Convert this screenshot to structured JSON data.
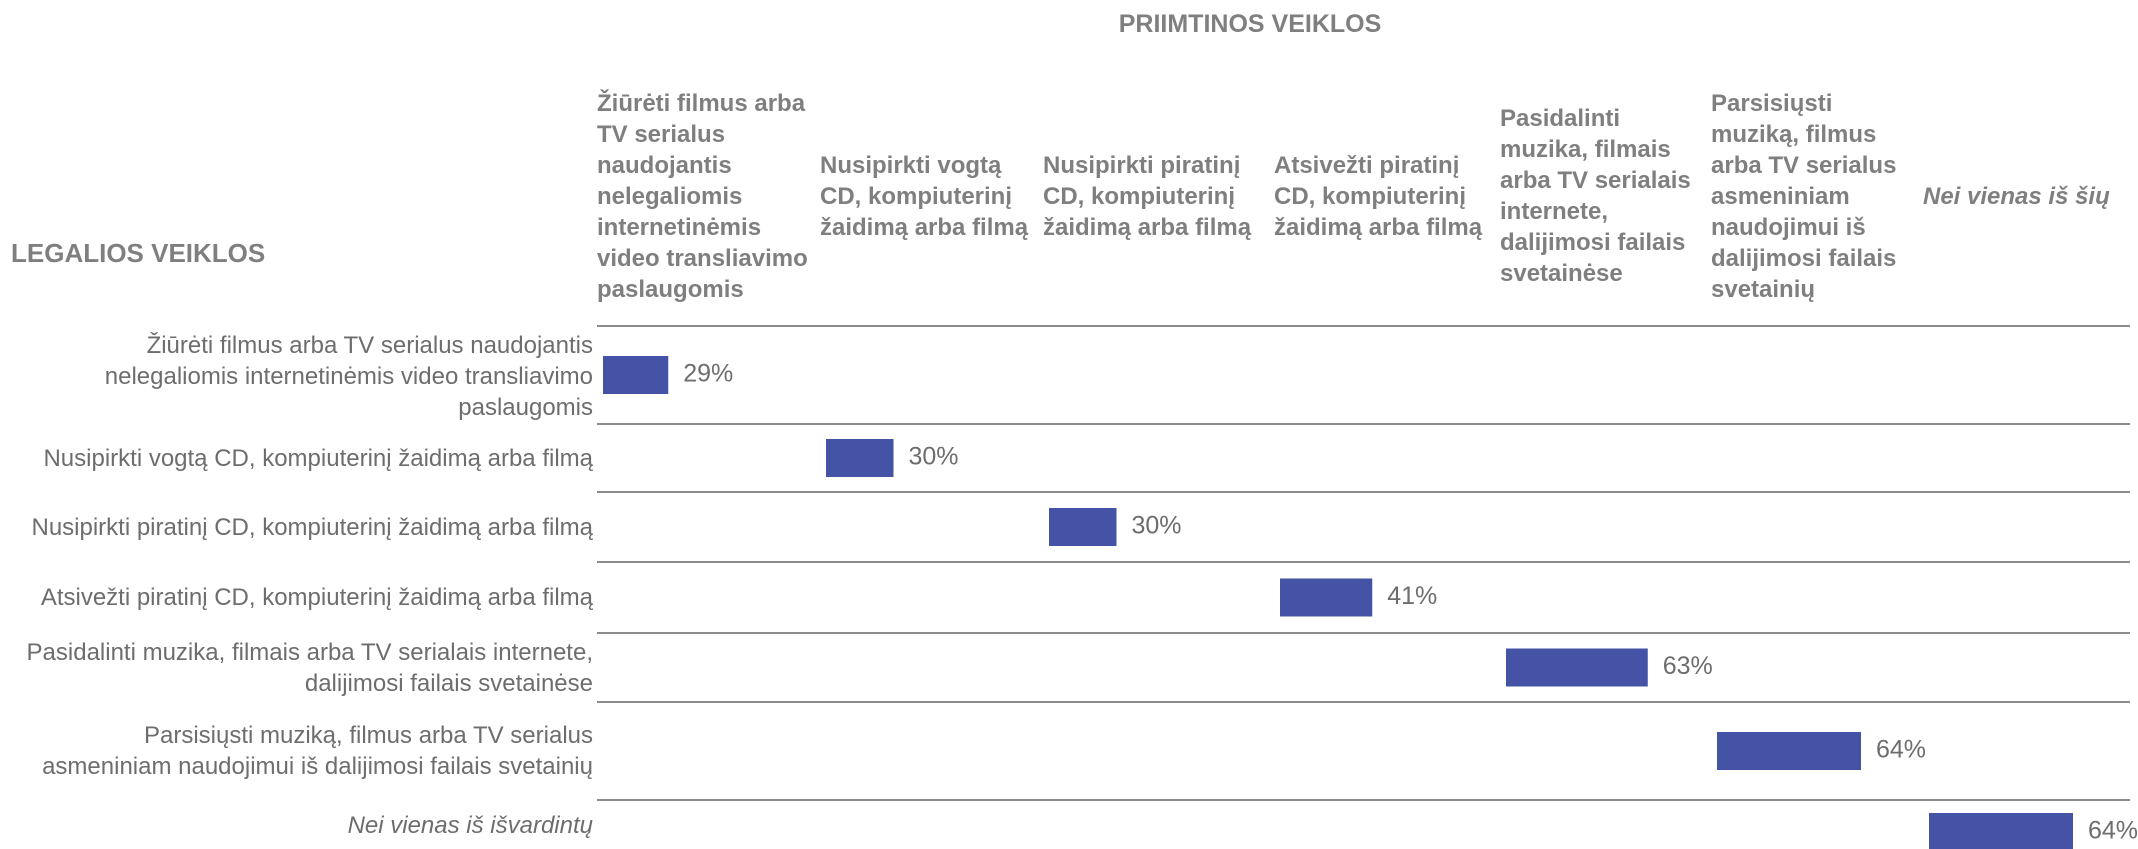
{
  "chart_data": {
    "type": "bar",
    "title": "PRIIMTINOS VEIKLOS",
    "y_label": "LEGALIOS VEIKLOS",
    "columns": [
      "Žiūrėti filmus arba TV serialus naudojantis nelegaliomis internetinėmis video transliavimo paslaugomis",
      "Nusipirkti vogtą CD, kompiuterinį žaidimą arba filmą",
      "Nusipirkti piratinį CD, kompiuterinį žaidimą arba filmą",
      "Atsivežti piratinį CD, kompiuterinį žaidimą arba filmą",
      "Pasidalinti muzika, filmais arba TV serialais internete, dalijimosi failais svetainėse",
      "Parsisiųsti muziką, filmus arba TV serialus asmeniniam naudojimui iš dalijimosi failais svetainių",
      "Nei vienas iš šių"
    ],
    "categories": [
      "Žiūrėti filmus arba TV serialus naudojantis nelegaliomis internetinėmis video transliavimo paslaugomis",
      "Nusipirkti vogtą CD, kompiuterinį žaidimą arba filmą",
      "Nusipirkti piratinį CD, kompiuterinį žaidimą arba filmą",
      "Atsivežti piratinį CD, kompiuterinį žaidimą arba filmą",
      "Pasidalinti muzika, filmais arba TV serialais internete, dalijimosi failais svetainėse",
      "Parsisiųsti muziką, filmus arba TV serialus asmeniniam naudojimui iš dalijimosi failais svetainių",
      "Nei vienas iš išvardintų"
    ],
    "values": [
      29,
      30,
      30,
      41,
      63,
      64,
      64
    ],
    "value_labels": [
      "29%",
      "30%",
      "30%",
      "41%",
      "63%",
      "64%",
      "64%"
    ],
    "color": "#4453a6"
  }
}
